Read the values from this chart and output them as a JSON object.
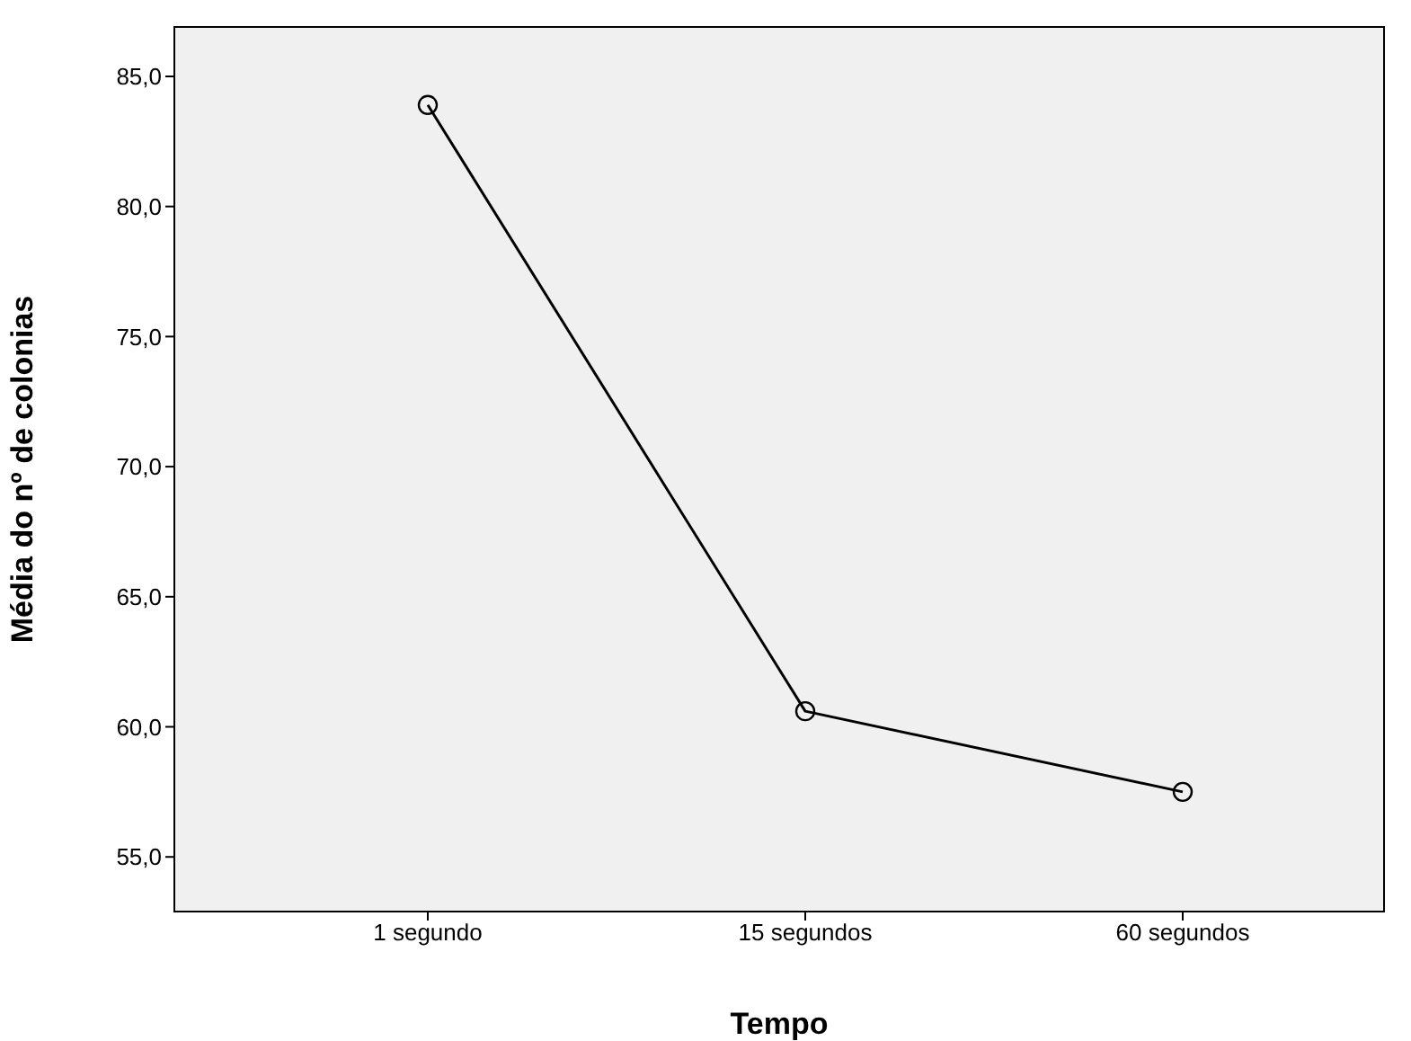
{
  "chart_data": {
    "type": "line",
    "xlabel": "Tempo",
    "ylabel": "Média do nº de colonias",
    "categories": [
      "1 segundo",
      "15 segundos",
      "60 segundos"
    ],
    "series": [
      {
        "color": "#000000",
        "values": [
          83.9,
          60.6,
          57.5
        ]
      }
    ],
    "ylim": [
      52.9,
      86.9
    ],
    "yticks": [
      {
        "value": 55,
        "label": "55,0"
      },
      {
        "value": 60,
        "label": "60,0"
      },
      {
        "value": 65,
        "label": "65,0"
      },
      {
        "value": 70,
        "label": "70,0"
      },
      {
        "value": 75,
        "label": "75,0"
      },
      {
        "value": 80,
        "label": "80,0"
      },
      {
        "value": 85,
        "label": "85,0"
      }
    ],
    "marker": "circle",
    "line_style": "solid",
    "legend": false
  }
}
